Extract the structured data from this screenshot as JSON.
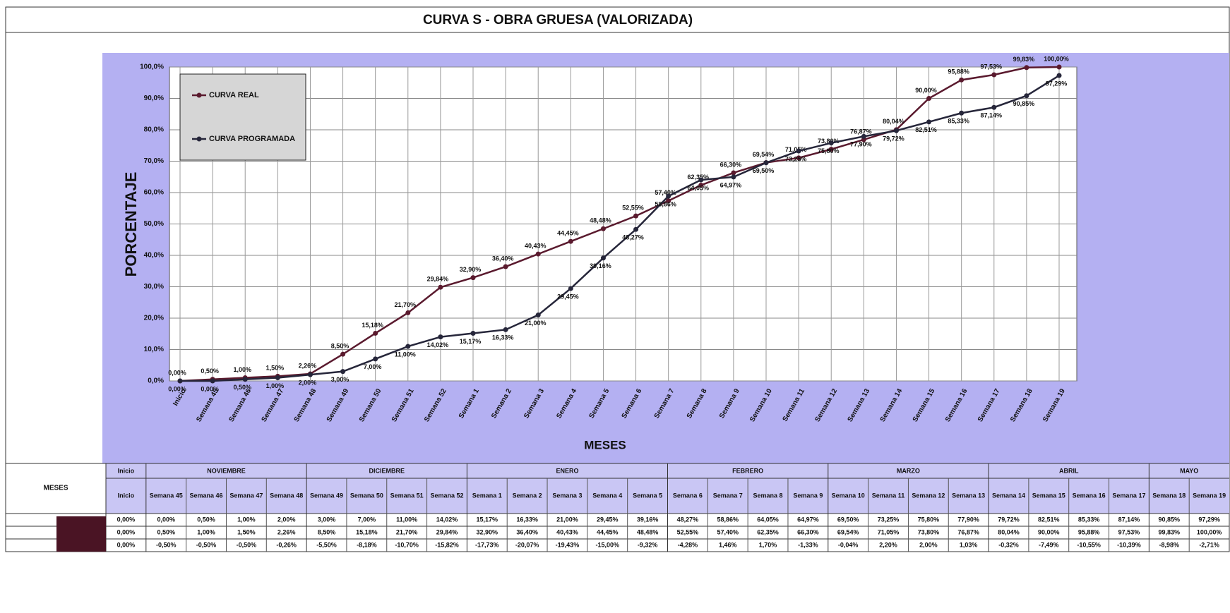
{
  "chart_data": {
    "type": "line",
    "title": "CURVA S - OBRA GRUESA (VALORIZADA)",
    "ylabel": "PORCENTAJE",
    "xlabel": "MESES",
    "categories": [
      "Inicio",
      "Semana 45",
      "Semana 46",
      "Semana 47",
      "Semana 48",
      "Semana 49",
      "Semana 50",
      "Semana 51",
      "Semana 52",
      "Semana 1",
      "Semana 2",
      "Semana 3",
      "Semana 4",
      "Semana 5",
      "Semana 6",
      "Semana 7",
      "Semana 8",
      "Semana 9",
      "Semana 10",
      "Semana 11",
      "Semana 12",
      "Semana 13",
      "Semana 14",
      "Semana 15",
      "Semana 16",
      "Semana 17",
      "Semana 18",
      "Semana 19"
    ],
    "ylim": [
      0,
      100
    ],
    "yticks": [
      {
        "value": 0,
        "label": "0,0%"
      },
      {
        "value": 10,
        "label": "10,0%"
      },
      {
        "value": 20,
        "label": "20,0%"
      },
      {
        "value": 30,
        "label": "30,0%"
      },
      {
        "value": 40,
        "label": "40,0%"
      },
      {
        "value": 50,
        "label": "50,0%"
      },
      {
        "value": 60,
        "label": "60,0%"
      },
      {
        "value": 70,
        "label": "70,0%"
      },
      {
        "value": 80,
        "label": "80,0%"
      },
      {
        "value": 90,
        "label": "90,0%"
      },
      {
        "value": 100,
        "label": "100,0%"
      }
    ],
    "grid": true,
    "legend": "upper left",
    "series": [
      {
        "name": "CURVA REAL",
        "color": "#5a1a2e",
        "values": [
          0.0,
          0.5,
          1.0,
          1.5,
          2.26,
          8.5,
          15.18,
          21.7,
          29.84,
          32.9,
          36.4,
          40.43,
          44.45,
          48.48,
          52.55,
          57.4,
          62.35,
          66.3,
          69.54,
          71.05,
          73.8,
          76.87,
          80.04,
          90.0,
          95.88,
          97.53,
          99.83,
          100.0
        ],
        "value_labels": [
          "0,00%",
          "0,50%",
          "1,00%",
          "1,50%",
          "2,26%",
          "8,50%",
          "15,18%",
          "21,70%",
          "29,84%",
          "32,90%",
          "36,40%",
          "40,43%",
          "44,45%",
          "48,48%",
          "52,55%",
          "57,40%",
          "62,35%",
          "66,30%",
          "69,54%",
          "71,05%",
          "73,80%",
          "76,87%",
          "80,04%",
          "90,00%",
          "95,88%",
          "97,53%",
          "99,83%",
          "100,00%"
        ]
      },
      {
        "name": "CURVA PROGRAMADA",
        "color": "#26263a",
        "values": [
          0.0,
          0.0,
          0.5,
          1.0,
          2.0,
          3.0,
          7.0,
          11.0,
          14.02,
          15.17,
          16.33,
          21.0,
          29.45,
          39.16,
          48.27,
          58.86,
          64.05,
          64.97,
          69.5,
          73.25,
          75.8,
          77.9,
          79.72,
          82.51,
          85.33,
          87.14,
          90.85,
          97.29
        ],
        "value_labels": [
          "0,00%",
          "0,00%",
          "0,50%",
          "1,00%",
          "2,00%",
          "3,00%",
          "7,00%",
          "11,00%",
          "14,02%",
          "15,17%",
          "16,33%",
          "21,00%",
          "29,45%",
          "39,16%",
          "48,27%",
          "58,86%",
          "64,05%",
          "64,97%",
          "69,50%",
          "73,25%",
          "75,80%",
          "77,90%",
          "79,72%",
          "82,51%",
          "85,33%",
          "87,14%",
          "90,85%",
          "97,29%"
        ]
      }
    ]
  },
  "table": {
    "corner": "MESES",
    "months": [
      {
        "name": "Inicio",
        "weeks": [
          "Inicio"
        ]
      },
      {
        "name": "NOVIEMBRE",
        "weeks": [
          "Semana 45",
          "Semana 46",
          "Semana 47",
          "Semana 48"
        ]
      },
      {
        "name": "DICIEMBRE",
        "weeks": [
          "Semana 49",
          "Semana 50",
          "Semana 51",
          "Semana 52"
        ]
      },
      {
        "name": "ENERO",
        "weeks": [
          "Semana 1",
          "Semana 2",
          "Semana 3",
          "Semana 4",
          "Semana 5"
        ]
      },
      {
        "name": "FEBRERO",
        "weeks": [
          "Semana 6",
          "Semana 7",
          "Semana 8",
          "Semana 9"
        ]
      },
      {
        "name": "MARZO",
        "weeks": [
          "Semana 10",
          "Semana 11",
          "Semana 12",
          "Semana 13"
        ]
      },
      {
        "name": "ABRIL",
        "weeks": [
          "Semana 14",
          "Semana 15",
          "Semana 16",
          "Semana 17"
        ]
      },
      {
        "name": "MAYO",
        "weeks": [
          "Semana 18",
          "Semana 19"
        ]
      }
    ],
    "deviation": [
      "0,00%",
      "-0,50%",
      "-0,50%",
      "-0,50%",
      "-0,26%",
      "-5,50%",
      "-8,18%",
      "-10,70%",
      "-15,82%",
      "-17,73%",
      "-20,07%",
      "-19,43%",
      "-15,00%",
      "-9,32%",
      "-4,28%",
      "1,46%",
      "1,70%",
      "-1,33%",
      "-0,04%",
      "2,20%",
      "2,00%",
      "1,03%",
      "-0,32%",
      "-7,49%",
      "-10,55%",
      "-10,39%",
      "-8,98%",
      "-2,71%"
    ]
  }
}
